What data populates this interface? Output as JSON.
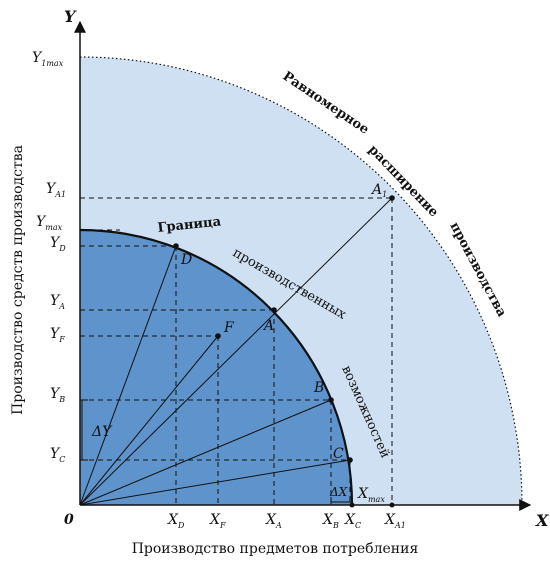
{
  "axes": {
    "x_title": "Производство предметов потребления",
    "y_title": "Производство средств производства",
    "x_letter": "X",
    "y_letter": "Y",
    "origin": "0"
  },
  "curve_labels": {
    "inner": [
      "Граница",
      "производственных",
      "возможностей"
    ],
    "outer": [
      "Равномерное",
      "расширение",
      "производства"
    ]
  },
  "points": {
    "A": "A",
    "A1": "A",
    "A1_sub": "1",
    "B": "B",
    "C": "C",
    "D": "D",
    "F": "F"
  },
  "y_ticks": [
    {
      "main": "Y",
      "sub": "1max"
    },
    {
      "main": "Y",
      "sub": "A1"
    },
    {
      "main": "Y",
      "sub": "max"
    },
    {
      "main": "Y",
      "sub": "D"
    },
    {
      "main": "Y",
      "sub": "A"
    },
    {
      "main": "Y",
      "sub": "F"
    },
    {
      "main": "Y",
      "sub": "B"
    },
    {
      "main": "Y",
      "sub": "C"
    }
  ],
  "x_ticks": [
    {
      "main": "X",
      "sub": "D"
    },
    {
      "main": "X",
      "sub": "F"
    },
    {
      "main": "X",
      "sub": "A"
    },
    {
      "main": "X",
      "sub": "B"
    },
    {
      "main": "X",
      "sub": "C"
    },
    {
      "main": "X",
      "sub": "A1"
    },
    {
      "main": "X",
      "sub": "max"
    }
  ],
  "deltas": {
    "dy": "ΔY",
    "dx": "ΔX"
  },
  "colors": {
    "outer_fill": "#cfe0f2",
    "inner_fill": "#5e93cc",
    "line": "#111111"
  }
}
